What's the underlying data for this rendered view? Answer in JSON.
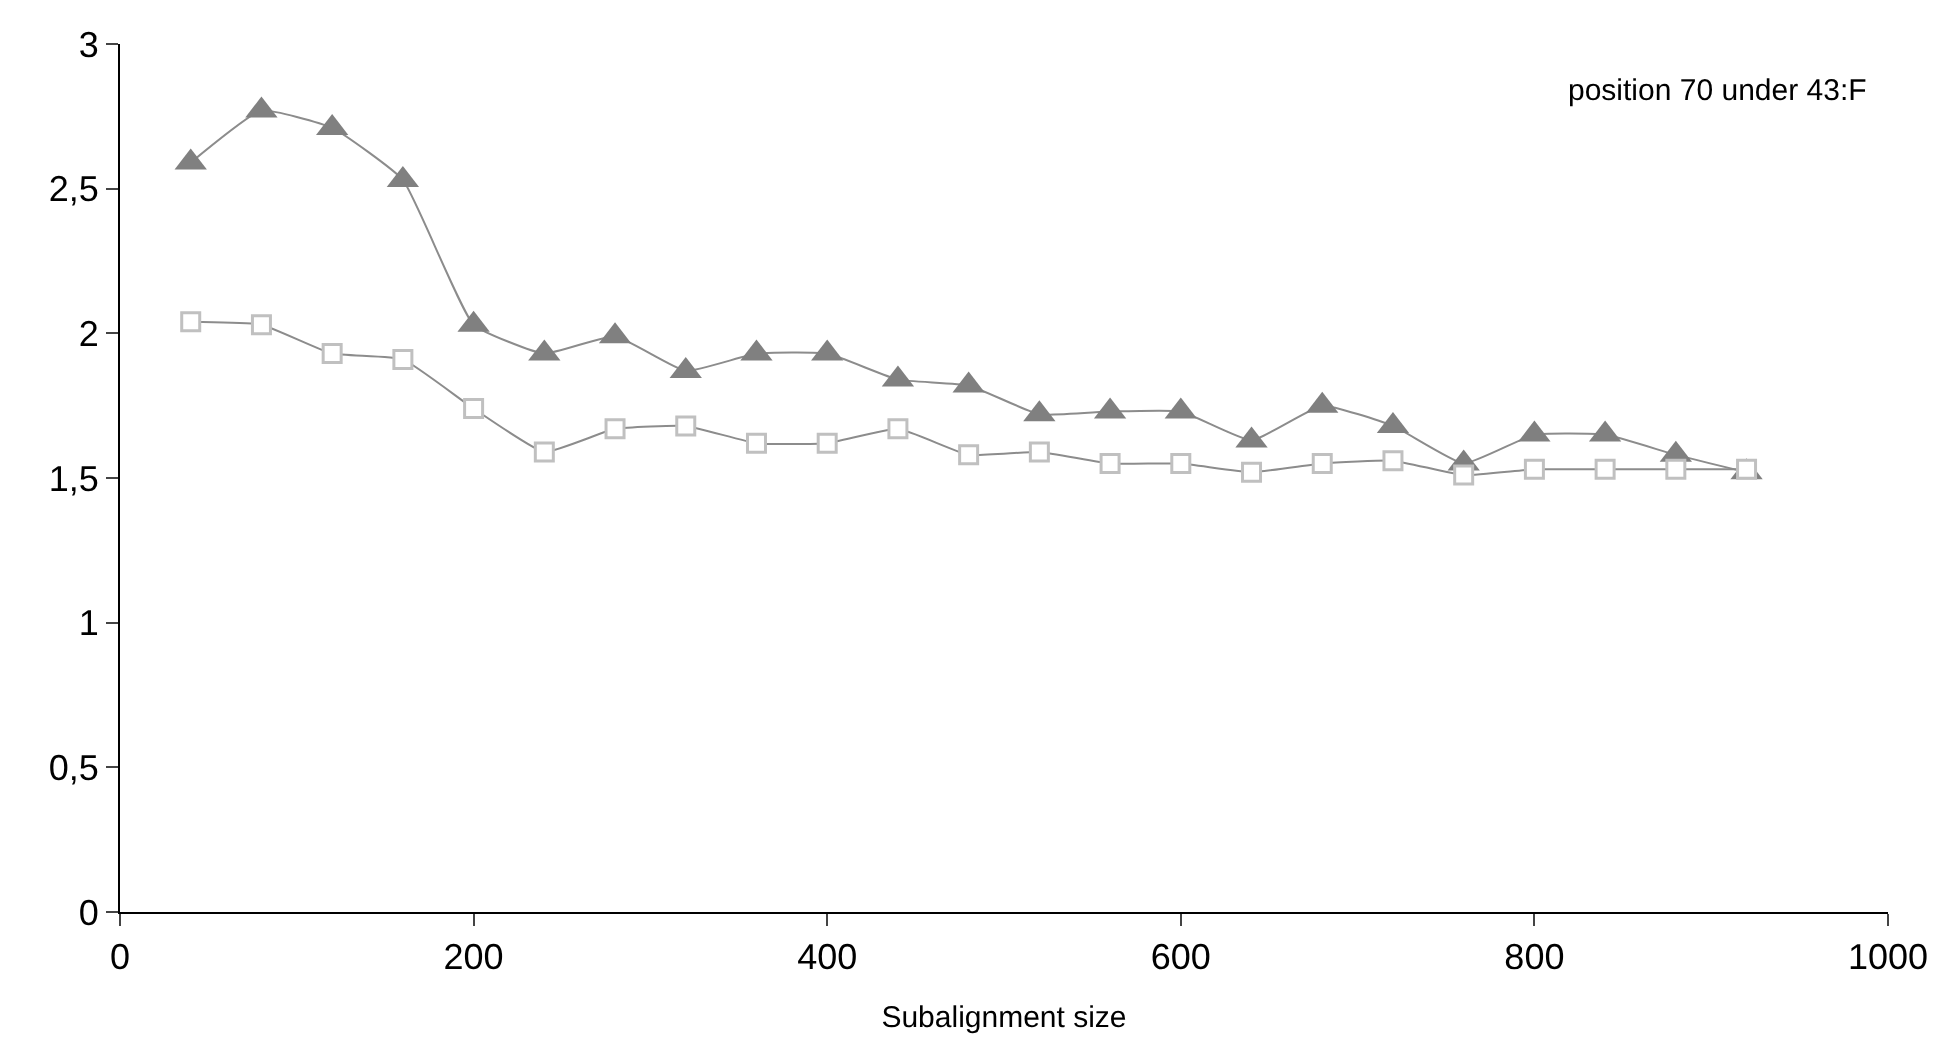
{
  "chart_data": {
    "type": "line",
    "xlabel": "Subalignment size",
    "annotations": [
      "position 70 under 43:F"
    ],
    "x": [
      40,
      80,
      120,
      160,
      200,
      240,
      280,
      320,
      360,
      400,
      440,
      480,
      520,
      560,
      600,
      640,
      680,
      720,
      760,
      800,
      840,
      880,
      920
    ],
    "series": [
      {
        "color": "#808080",
        "marker": "triangle",
        "values": [
          2.59,
          2.77,
          2.71,
          2.53,
          2.03,
          1.93,
          1.99,
          1.87,
          1.93,
          1.93,
          1.84,
          1.82,
          1.72,
          1.73,
          1.73,
          1.63,
          1.75,
          1.68,
          1.55,
          1.65,
          1.65,
          1.58,
          1.52
        ]
      },
      {
        "color": "#c0c0c0",
        "marker": "square",
        "values": [
          2.04,
          2.03,
          1.93,
          1.91,
          1.74,
          1.59,
          1.67,
          1.68,
          1.62,
          1.62,
          1.67,
          1.58,
          1.59,
          1.55,
          1.55,
          1.52,
          1.55,
          1.56,
          1.51,
          1.53,
          1.53,
          1.53,
          1.53
        ]
      }
    ],
    "xlim": [
      0,
      1000
    ],
    "xticks": [
      0,
      200,
      400,
      600,
      800,
      1000
    ],
    "ylim": [
      0,
      3
    ],
    "yticks": [
      0,
      {
        "value": 0.5,
        "label": "0,5"
      },
      1,
      {
        "value": 1.5,
        "label": "1,5"
      },
      2,
      {
        "value": 2.5,
        "label": "2,5"
      },
      3
    ]
  }
}
